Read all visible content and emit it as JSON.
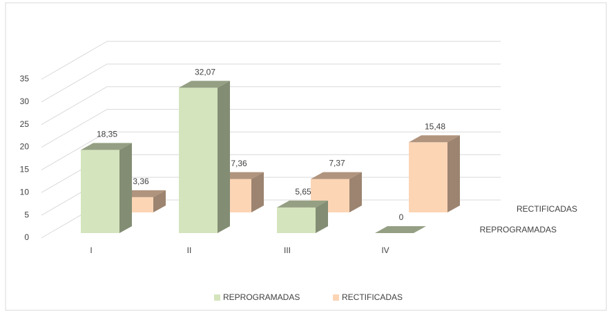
{
  "chart_data": {
    "type": "bar3d",
    "categories": [
      "I",
      "II",
      "III",
      "IV"
    ],
    "series": [
      {
        "name": "REPROGRAMADAS",
        "color": "#d4e4bc",
        "values": [
          18.35,
          32.07,
          5.65,
          0
        ],
        "value_labels": [
          "18,35",
          "32,07",
          "5,65",
          "0"
        ]
      },
      {
        "name": "RECTIFICADAS",
        "color": "#fcd5b5",
        "values": [
          3.36,
          7.36,
          7.37,
          15.48
        ],
        "value_labels": [
          "3,36",
          "7,36",
          "7,37",
          "15,48"
        ]
      }
    ],
    "ylim": [
      0,
      35
    ],
    "yticks": [
      0,
      5,
      10,
      15,
      20,
      25,
      30,
      35
    ],
    "grid": true,
    "legend": "bottom"
  }
}
